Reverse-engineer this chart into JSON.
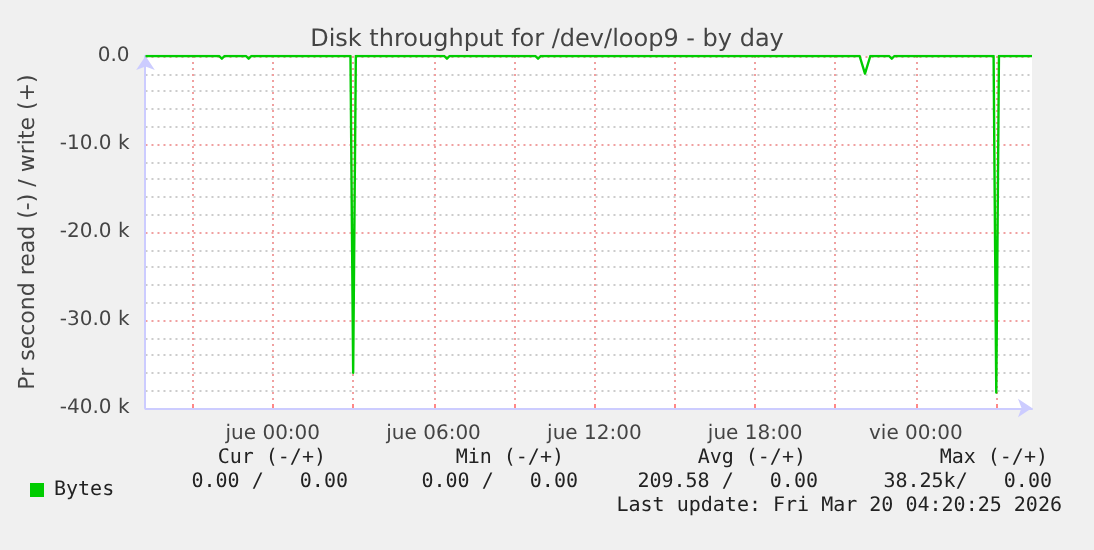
{
  "chart_data": {
    "type": "line",
    "title": "Disk throughput for /dev/loop9 - by day",
    "ylabel": "Pr second read (-) / write (+)",
    "x": [
      "2026-03-18T19:15",
      "2026-03-18T22:00",
      "2026-03-18T22:06",
      "2026-03-18T22:12",
      "2026-03-18T23:00",
      "2026-03-18T23:06",
      "2026-03-18T23:12",
      "2026-03-19T02:54",
      "2026-03-19T03:00",
      "2026-03-19T03:06",
      "2026-03-19T06:24",
      "2026-03-19T06:30",
      "2026-03-19T06:36",
      "2026-03-19T09:48",
      "2026-03-19T09:54",
      "2026-03-19T10:00",
      "2026-03-19T21:54",
      "2026-03-19T22:06",
      "2026-03-19T22:18",
      "2026-03-19T23:00",
      "2026-03-19T23:06",
      "2026-03-19T23:12",
      "2026-03-20T02:54",
      "2026-03-20T03:00",
      "2026-03-20T03:06",
      "2026-03-20T04:20"
    ],
    "series": [
      {
        "name": "Bytes",
        "color": "#00cc00",
        "values": [
          0,
          0,
          -300,
          0,
          0,
          -300,
          0,
          0,
          -36000,
          0,
          0,
          -300,
          0,
          0,
          -300,
          0,
          0,
          -2000,
          0,
          0,
          -300,
          0,
          0,
          -38250,
          0,
          0
        ]
      }
    ],
    "xlim": [
      "2026-03-18T19:15",
      "2026-03-20T04:20"
    ],
    "xticks": [
      {
        "value": "2026-03-18T21:00",
        "label": null
      },
      {
        "value": "2026-03-19T00:00",
        "label": "jue 00:00"
      },
      {
        "value": "2026-03-19T03:00",
        "label": null
      },
      {
        "value": "2026-03-19T06:00",
        "label": "jue 06:00"
      },
      {
        "value": "2026-03-19T09:00",
        "label": null
      },
      {
        "value": "2026-03-19T12:00",
        "label": "jue 12:00"
      },
      {
        "value": "2026-03-19T15:00",
        "label": null
      },
      {
        "value": "2026-03-19T18:00",
        "label": "jue 18:00"
      },
      {
        "value": "2026-03-19T21:00",
        "label": null
      },
      {
        "value": "2026-03-20T00:00",
        "label": "vie 00:00"
      },
      {
        "value": "2026-03-20T03:00",
        "label": null
      }
    ],
    "ylim": [
      -40000,
      0
    ],
    "yticks": [
      {
        "value": -40000,
        "label": "-40.0 k"
      },
      {
        "value": -30000,
        "label": "-30.0 k"
      },
      {
        "value": -20000,
        "label": "-20.0 k"
      },
      {
        "value": -10000,
        "label": "-10.0 k"
      },
      {
        "value": 0,
        "label": "0.0"
      }
    ],
    "grid": true,
    "legend": "bottom left",
    "marker": "none",
    "line_style": "solid",
    "annotations": [
      "Cur (-/+)",
      "Min (-/+)",
      "Avg (-/+)",
      "Max (-/+)",
      "0.00 /   0.00",
      "0.00 /   0.00",
      "209.58 /   0.00",
      "38.25k/   0.00",
      "Last update: Fri Mar 20 04:20:25 2026"
    ]
  }
}
